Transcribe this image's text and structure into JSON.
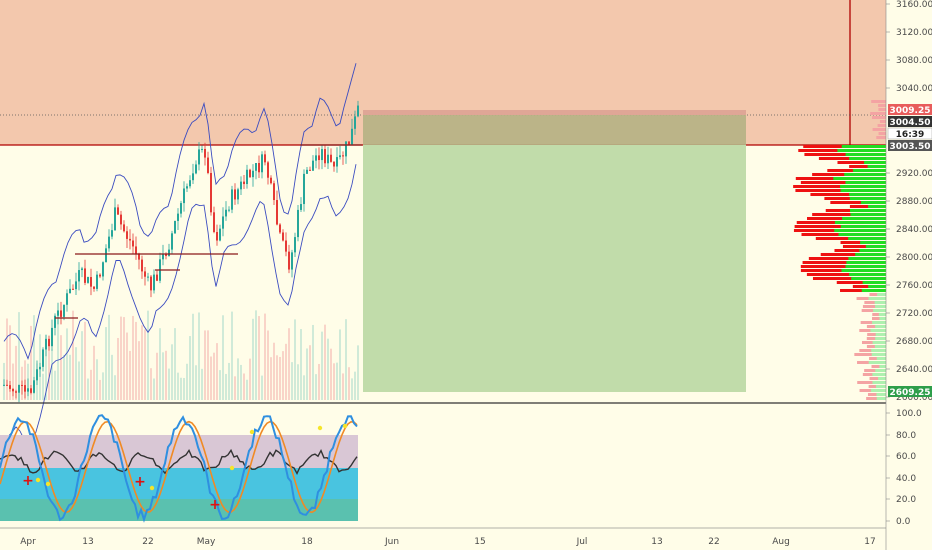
{
  "colors": {
    "background": "#fffde8",
    "resistance_zone": "#f3c8ad",
    "target_zone": "#c1dcaa",
    "stop_zone": "#b5b184",
    "up_candle": "#26a69a",
    "down_candle": "#e53935",
    "band": "#3b4cc0",
    "volume_profile_sell": "#ee1111",
    "volume_profile_buy": "#22dd22",
    "stoch_k": "#2f8fe0",
    "stoch_d": "#f08a24",
    "rsi_line": "#333333"
  },
  "price_axis": {
    "ticks": [
      "3160.00",
      "3120.00",
      "3080.00",
      "3040.00",
      "2920.00",
      "2880.00",
      "2840.00",
      "2800.00",
      "2760.00",
      "2720.00",
      "2680.00",
      "2640.00",
      "2600.00"
    ]
  },
  "price_labels": {
    "entry_top": "3009.25",
    "current": "3004.50",
    "countdown": "16:39",
    "zone_level": "3003.50",
    "target": "2609.25"
  },
  "oscillator_axis": {
    "ticks": [
      "100.0",
      "80.0",
      "60.0",
      "40.0",
      "20.0",
      "0.0"
    ]
  },
  "time_axis": {
    "ticks": [
      "Apr",
      "13",
      "22",
      "May",
      "18",
      "Jun",
      "15",
      "Jul",
      "13",
      "22",
      "Aug",
      "17"
    ]
  },
  "chart_data": {
    "type": "candlestick",
    "price_range": [
      2600,
      3170
    ],
    "oscillator_range": [
      -10,
      105
    ],
    "resistance_zone": {
      "from": 3003.5,
      "to": 3170
    },
    "short_position": {
      "entry": 3004.5,
      "stop": 3009.25,
      "target": 2609.25
    },
    "horizontal_levels": [
      2805
    ]
  }
}
